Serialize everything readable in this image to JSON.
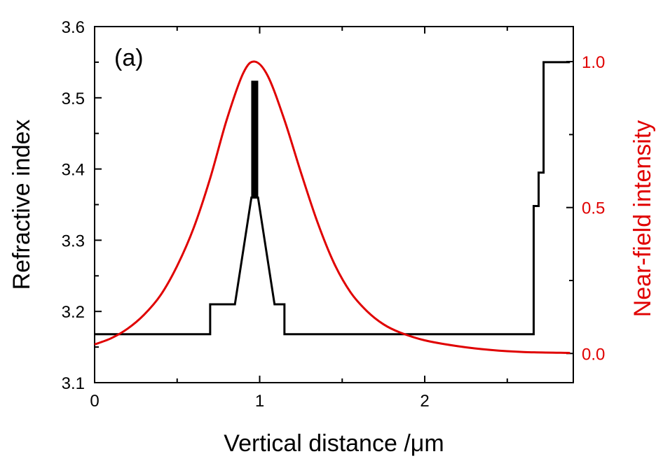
{
  "chart_data": {
    "type": "line",
    "panel_label": "(a)",
    "xlabel": "Vertical distance /μm",
    "ylabel_left": "Refractive index",
    "ylabel_right": "Near-field intensity",
    "xlim": [
      0,
      2.9
    ],
    "ylim_left": [
      3.1,
      3.6
    ],
    "ylim_right": [
      -0.1,
      1.12
    ],
    "x_ticks": [
      {
        "v": 0,
        "label": "0"
      },
      {
        "v": 1,
        "label": "1"
      },
      {
        "v": 2,
        "label": "2"
      }
    ],
    "y_left_ticks": [
      {
        "v": 3.1,
        "label": "3.1"
      },
      {
        "v": 3.2,
        "label": "3.2"
      },
      {
        "v": 3.3,
        "label": "3.3"
      },
      {
        "v": 3.4,
        "label": "3.4"
      },
      {
        "v": 3.5,
        "label": "3.5"
      },
      {
        "v": 3.6,
        "label": "3.6"
      }
    ],
    "y_right_ticks": [
      {
        "v": 0,
        "label": "0.0"
      },
      {
        "v": 0.5,
        "label": "0.5"
      },
      {
        "v": 1.0,
        "label": "1.0"
      }
    ],
    "colors": {
      "index": "#000000",
      "intensity": "#e00000",
      "axis": "#000000"
    },
    "series": [
      {
        "axis": "left",
        "color": "#000000",
        "points": [
          [
            0,
            3.168
          ],
          [
            0.7,
            3.168
          ],
          [
            0.7,
            3.21
          ],
          [
            0.85,
            3.21
          ],
          [
            0.95,
            3.36
          ],
          [
            0.99,
            3.36
          ],
          [
            1.09,
            3.21
          ],
          [
            1.15,
            3.21
          ],
          [
            1.15,
            3.168
          ],
          [
            2.66,
            3.168
          ],
          [
            2.66,
            3.348
          ],
          [
            2.69,
            3.348
          ],
          [
            2.69,
            3.395
          ],
          [
            2.72,
            3.395
          ],
          [
            2.72,
            3.55
          ],
          [
            2.88,
            3.55
          ]
        ]
      },
      {
        "axis": "left",
        "color": "#000000",
        "points": [
          [
            0.97,
            3.36
          ],
          [
            0.97,
            3.524
          ]
        ]
      },
      {
        "axis": "right",
        "color": "#e00000",
        "points": [
          [
            0,
            0.031
          ],
          [
            0.1,
            0.052
          ],
          [
            0.2,
            0.085
          ],
          [
            0.3,
            0.133
          ],
          [
            0.4,
            0.2
          ],
          [
            0.5,
            0.3
          ],
          [
            0.6,
            0.43
          ],
          [
            0.7,
            0.6
          ],
          [
            0.8,
            0.8
          ],
          [
            0.9,
            0.96
          ],
          [
            0.97,
            1.0
          ],
          [
            1.05,
            0.95
          ],
          [
            1.15,
            0.8
          ],
          [
            1.25,
            0.62
          ],
          [
            1.35,
            0.45
          ],
          [
            1.45,
            0.31
          ],
          [
            1.55,
            0.21
          ],
          [
            1.65,
            0.145
          ],
          [
            1.75,
            0.1
          ],
          [
            1.85,
            0.072
          ],
          [
            2.0,
            0.045
          ],
          [
            2.2,
            0.025
          ],
          [
            2.4,
            0.012
          ],
          [
            2.6,
            0.005
          ],
          [
            2.88,
            0.002
          ]
        ]
      }
    ]
  }
}
